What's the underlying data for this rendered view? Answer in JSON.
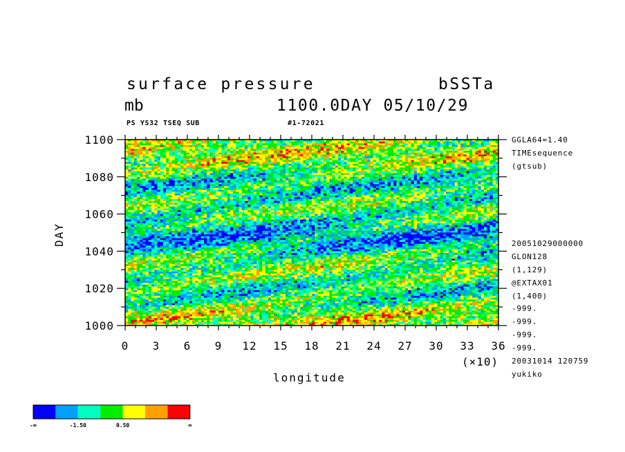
{
  "header": {
    "variable": "surface pressure",
    "run": "bSSTa",
    "units": "mb",
    "datetime": "1100.0DAY 05/10/29",
    "small_left": "PS YS32 TSEQ SUB",
    "small_id": "#1-72021"
  },
  "side_info": [
    "GGLA64=1.40",
    "TIMEsequence",
    "(gtsub)",
    "20051029000000",
    "GLON128",
    "(1,129)",
    "@EXTAX01",
    "(1,400)",
    "-999.",
    "-999.",
    "-999.",
    "-999.",
    "20031014 120759",
    "yukiko"
  ],
  "chart_data": {
    "type": "heatmap",
    "xlabel": "longitude",
    "xscale_note": "(×10)",
    "ylabel": "DAY",
    "xlim": [
      0,
      36
    ],
    "ylim": [
      1000,
      1100
    ],
    "x_ticks": [
      0,
      3,
      6,
      9,
      12,
      15,
      18,
      21,
      24,
      27,
      30,
      33,
      36
    ],
    "y_ticks": [
      1000,
      1020,
      1040,
      1060,
      1080,
      1100
    ],
    "legend": {
      "placement": "bottom-left",
      "colors": [
        "#0000ff",
        "#00a0ff",
        "#00ffc0",
        "#00ee00",
        "#ffff00",
        "#ffa000",
        "#ff0000"
      ],
      "labels": [
        "-∞",
        "-1.50",
        "0.50",
        "∞"
      ]
    }
  }
}
